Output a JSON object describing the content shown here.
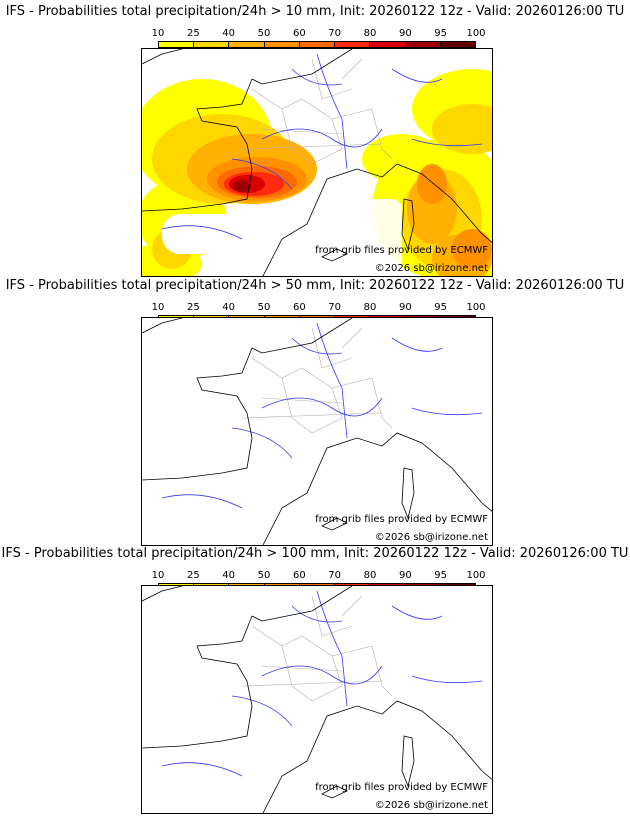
{
  "colorbar": {
    "ticks": [
      "10",
      "25",
      "40",
      "50",
      "60",
      "70",
      "80",
      "90",
      "95",
      "100"
    ],
    "colors": [
      "#ffff00",
      "#ffd700",
      "#ffb000",
      "#ff9000",
      "#ff6a00",
      "#ff2a10",
      "#d80000",
      "#a00000",
      "#600000"
    ]
  },
  "colors": {
    "coast": "#000000",
    "rivers": "#3535ff",
    "borders": "#b0b0b0"
  },
  "panels": [
    {
      "title": "IFS - Probabilities total precipitation/24h > 10 mm, Init: 20260122 12z - Valid: 20260126:00 TU",
      "credit1": "from grib files provided by ECMWF",
      "credit2": "©2026 sb@irizone.net",
      "has_precip": true
    },
    {
      "title": "IFS - Probabilities total precipitation/24h > 50 mm, Init: 20260122 12z - Valid: 20260126:00 TU",
      "credit1": "from grib files provided by ECMWF",
      "credit2": "©2026 sb@irizone.net",
      "has_precip": false
    },
    {
      "title": "IFS - Probabilities total precipitation/24h > 100 mm, Init: 20260122 12z - Valid: 20260126:00 TU",
      "credit1": "from grib files provided by ECMWF",
      "credit2": "©2026 sb@irizone.net",
      "has_precip": false
    }
  ]
}
